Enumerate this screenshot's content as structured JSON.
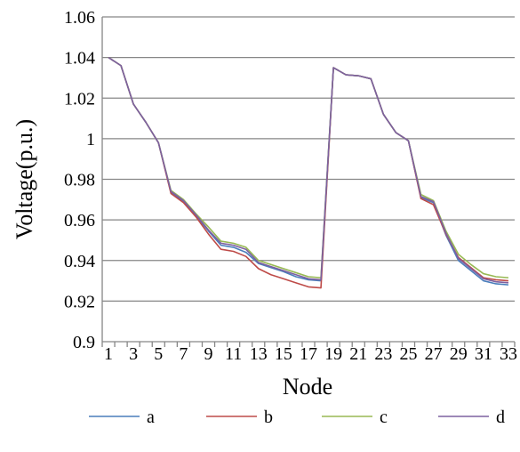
{
  "chart_data": {
    "type": "line",
    "title": "",
    "xlabel": "Node",
    "ylabel": "Voltage(p.u.)",
    "ylim": [
      0.9,
      1.06
    ],
    "yticks": [
      "0.9",
      "0.92",
      "0.94",
      "0.96",
      "0.98",
      "1",
      "1.02",
      "1.04",
      "1.06"
    ],
    "xticks": [
      "1",
      "3",
      "5",
      "7",
      "9",
      "11",
      "13",
      "15",
      "17",
      "19",
      "21",
      "23",
      "25",
      "27",
      "29",
      "31",
      "33"
    ],
    "grid": "horizontal",
    "legend_position": "bottom",
    "x": [
      1,
      2,
      3,
      4,
      5,
      6,
      7,
      8,
      9,
      10,
      11,
      12,
      13,
      14,
      15,
      16,
      17,
      18,
      19,
      20,
      21,
      22,
      23,
      24,
      25,
      26,
      27,
      28,
      29,
      30,
      31,
      32,
      33
    ],
    "series": [
      {
        "name": "a",
        "color": "#4a7ebb",
        "values": [
          1.04,
          1.036,
          1.017,
          1.008,
          0.998,
          0.9735,
          0.969,
          0.962,
          0.9545,
          0.9475,
          0.9465,
          0.944,
          0.9385,
          0.9365,
          0.9345,
          0.932,
          0.9305,
          0.93,
          1.035,
          1.0315,
          1.031,
          1.0295,
          1.012,
          1.003,
          0.999,
          0.971,
          0.9685,
          0.9525,
          0.94,
          0.935,
          0.93,
          0.9285,
          0.928
        ]
      },
      {
        "name": "b",
        "color": "#be4b48",
        "values": [
          1.04,
          1.036,
          1.017,
          1.008,
          0.998,
          0.973,
          0.9685,
          0.9615,
          0.953,
          0.9455,
          0.9445,
          0.942,
          0.936,
          0.933,
          0.931,
          0.929,
          0.927,
          0.9265,
          1.035,
          1.0315,
          1.031,
          1.0295,
          1.012,
          1.003,
          0.999,
          0.9705,
          0.9675,
          0.953,
          0.9415,
          0.9365,
          0.9315,
          0.9305,
          0.93
        ]
      },
      {
        "name": "c",
        "color": "#98b954",
        "values": [
          1.04,
          1.036,
          1.017,
          1.008,
          0.998,
          0.9745,
          0.97,
          0.963,
          0.9565,
          0.9495,
          0.9485,
          0.9465,
          0.94,
          0.938,
          0.936,
          0.934,
          0.932,
          0.9315,
          1.035,
          1.0315,
          1.031,
          1.0295,
          1.012,
          1.003,
          0.999,
          0.9725,
          0.9695,
          0.9545,
          0.943,
          0.938,
          0.9335,
          0.932,
          0.9315
        ]
      },
      {
        "name": "d",
        "color": "#7d60a0",
        "values": [
          1.04,
          1.036,
          1.017,
          1.008,
          0.998,
          0.974,
          0.9695,
          0.9625,
          0.955,
          0.9485,
          0.9475,
          0.9455,
          0.939,
          0.937,
          0.935,
          0.933,
          0.931,
          0.9305,
          1.035,
          1.0315,
          1.031,
          1.0295,
          1.012,
          1.003,
          0.999,
          0.9715,
          0.969,
          0.9535,
          0.941,
          0.936,
          0.931,
          0.9295,
          0.929
        ]
      }
    ]
  }
}
